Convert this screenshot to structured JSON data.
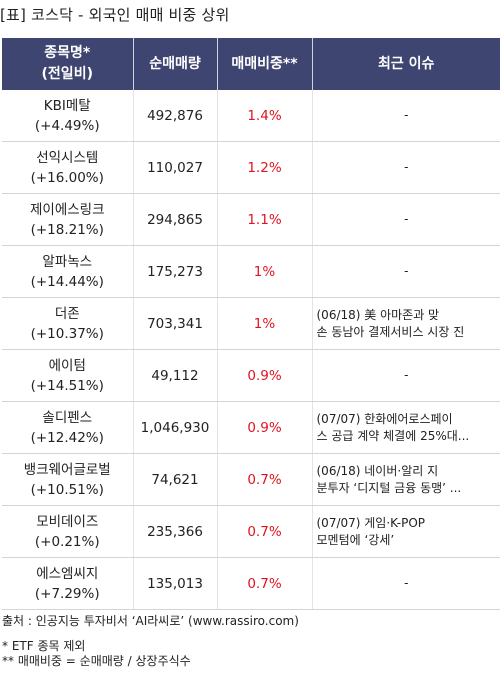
{
  "title": "[표] 코스닥 - 외국인 매매 비중 상위",
  "headers": {
    "name_line1": "종목명*",
    "name_line2": "(전일비)",
    "volume": "순매매량",
    "ratio": "매매비중**",
    "issue": "최근 이슈"
  },
  "rows": [
    {
      "name": "KBI메탈",
      "change": "(+4.49%)",
      "volume": "492,876",
      "ratio": "1.4%",
      "issue1": "-",
      "issue2": ""
    },
    {
      "name": "선익시스템",
      "change": "(+16.00%)",
      "volume": "110,027",
      "ratio": "1.2%",
      "issue1": "-",
      "issue2": ""
    },
    {
      "name": "제이에스링크",
      "change": "(+18.21%)",
      "volume": "294,865",
      "ratio": "1.1%",
      "issue1": "-",
      "issue2": ""
    },
    {
      "name": "알파녹스",
      "change": "(+14.44%)",
      "volume": "175,273",
      "ratio": "1%",
      "issue1": "-",
      "issue2": ""
    },
    {
      "name": "더존",
      "change": "(+10.37%)",
      "volume": "703,341",
      "ratio": "1%",
      "issue1": "(06/18) 美 아마존과 맞",
      "issue2": "손 동남아 결제서비스 시장 진"
    },
    {
      "name": "에이텀",
      "change": "(+14.51%)",
      "volume": "49,112",
      "ratio": "0.9%",
      "issue1": "-",
      "issue2": ""
    },
    {
      "name": "솔디펜스",
      "change": "(+12.42%)",
      "volume": "1,046,930",
      "ratio": "0.9%",
      "issue1": "(07/07) 한화에어로스페이",
      "issue2": "스 공급 계약 체결에 25%대..."
    },
    {
      "name": "뱅크웨어글로벌",
      "change": "(+10.51%)",
      "volume": "74,621",
      "ratio": "0.7%",
      "issue1": "(06/18) 네이버·알리 지",
      "issue2": "분투자 ‘디지털 금융 동맹’ ..."
    },
    {
      "name": "모비데이즈",
      "change": "(+0.21%)",
      "volume": "235,366",
      "ratio": "0.7%",
      "issue1": "(07/07) 게임·K-POP",
      "issue2": "모멘텀에 ‘강세’"
    },
    {
      "name": "에스엠씨지",
      "change": "(+7.29%)",
      "volume": "135,013",
      "ratio": "0.7%",
      "issue1": "-",
      "issue2": ""
    }
  ],
  "footer": {
    "source": "출처 : 인공지능 투자비서 ‘AI라씨로’ (www.rassiro.com)",
    "note1": "* ETF 종목 제외",
    "note2": "** 매매비중 = 순매매량 / 상장주식수"
  }
}
